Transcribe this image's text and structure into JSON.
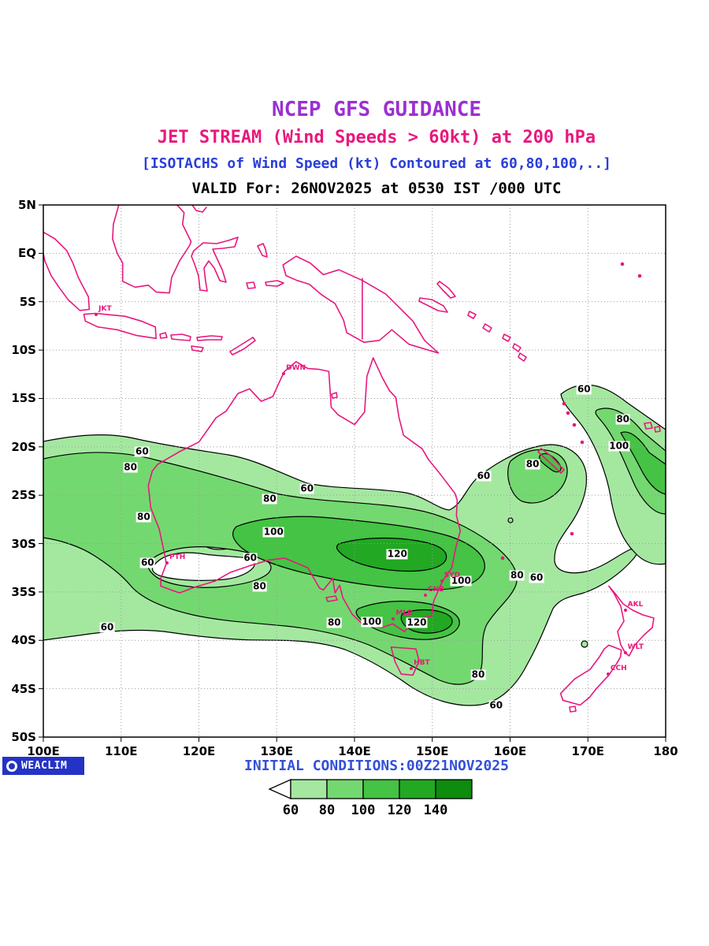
{
  "header": {
    "line1": "NCEP GFS GUIDANCE",
    "line2": "JET STREAM (Wind Speeds > 60kt) at 200 hPa",
    "line3": "[ISOTACHS of Wind Speed (kt) Contoured at 60,80,100,..]",
    "line4": "VALID For: 26NOV2025 at 0530 IST /000 UTC",
    "colors": {
      "line1": "#9b30d0",
      "line2": "#e8187d",
      "line3": "#2a3fd8",
      "line4": "#000000"
    }
  },
  "footer": {
    "initial_conditions": "INITIAL CONDITIONS:00Z21NOV2025",
    "initial_conditions_color": "#3350d8",
    "logo_text": "WEACLIM",
    "logo_bg": "#2433c6"
  },
  "axes": {
    "lat_ticks": [
      {
        "label": "5N",
        "lat": 5
      },
      {
        "label": "EQ",
        "lat": 0
      },
      {
        "label": "5S",
        "lat": -5
      },
      {
        "label": "10S",
        "lat": -10
      },
      {
        "label": "15S",
        "lat": -15
      },
      {
        "label": "20S",
        "lat": -20
      },
      {
        "label": "25S",
        "lat": -25
      },
      {
        "label": "30S",
        "lat": -30
      },
      {
        "label": "35S",
        "lat": -35
      },
      {
        "label": "40S",
        "lat": -40
      },
      {
        "label": "45S",
        "lat": -45
      },
      {
        "label": "50S",
        "lat": -50
      }
    ],
    "lon_ticks": [
      {
        "label": "100E",
        "lon": 100
      },
      {
        "label": "110E",
        "lon": 110
      },
      {
        "label": "120E",
        "lon": 120
      },
      {
        "label": "130E",
        "lon": 130
      },
      {
        "label": "140E",
        "lon": 140
      },
      {
        "label": "150E",
        "lon": 150
      },
      {
        "label": "160E",
        "lon": 160
      },
      {
        "label": "170E",
        "lon": 170
      },
      {
        "label": "180",
        "lon": 180
      }
    ]
  },
  "map": {
    "coast_color": "#e8187d",
    "grid_color": "#9a9a9a",
    "border_color": "#000000"
  },
  "chart_data": {
    "type": "heatmap",
    "subtype": "filled isotach contour map over geographic coastlines",
    "title": "NCEP GFS GUIDANCE",
    "subtitle": "JET STREAM (Wind Speeds > 60kt) at 200 hPa",
    "contour_note": "[ISOTACHS of Wind Speed (kt) Contoured at 60,80,100,..]",
    "valid_line": "VALID For: 26NOV2025 at 0530 IST /000 UTC",
    "initial_conditions": "INITIAL CONDITIONS:00Z21NOV2025",
    "variable": "wind speed",
    "unit": "kt",
    "pressure_level": "200 hPa",
    "model": "NCEP GFS",
    "lon_range_deg_e": [
      100,
      180
    ],
    "lat_range_deg": [
      -50,
      5
    ],
    "grid": true,
    "legend_position": "bottom",
    "contour_levels_kt": [
      60,
      80,
      100,
      120,
      140
    ],
    "fill_colors": [
      "#a4e8a0",
      "#74d870",
      "#44c344",
      "#22a822",
      "#0d8c0d"
    ],
    "below_min_color": "#ffffff",
    "features": [
      "broad subtropical jet band 100E-163E between about 20S and 47S with 100kt cores near 130E-150E around 29S-38S and 120kt maxima near 145E 31S and 148E 38S",
      "second diagonal jet band from about 169E 14S sloping southeast past 180E with 80 and 100kt cores near 174E 17S-20S"
    ],
    "contour_labels": [
      {
        "v": 60,
        "lon": 169.5,
        "lat": -14.1
      },
      {
        "v": 80,
        "lon": 174.5,
        "lat": -17.2
      },
      {
        "v": 100,
        "lon": 174.0,
        "lat": -19.9
      },
      {
        "v": 60,
        "lon": 112.7,
        "lat": -20.5
      },
      {
        "v": 80,
        "lon": 111.2,
        "lat": -22.1
      },
      {
        "v": 60,
        "lon": 133.9,
        "lat": -24.3
      },
      {
        "v": 80,
        "lon": 129.1,
        "lat": -25.4
      },
      {
        "v": 80,
        "lon": 112.9,
        "lat": -27.3
      },
      {
        "v": 100,
        "lon": 129.6,
        "lat": -28.8
      },
      {
        "v": 60,
        "lon": 156.6,
        "lat": -23.0
      },
      {
        "v": 80,
        "lon": 162.9,
        "lat": -21.8
      },
      {
        "v": 120,
        "lon": 145.5,
        "lat": -31.1
      },
      {
        "v": 60,
        "lon": 113.4,
        "lat": -32.0
      },
      {
        "v": 60,
        "lon": 126.6,
        "lat": -31.5
      },
      {
        "v": 100,
        "lon": 153.7,
        "lat": -33.9
      },
      {
        "v": 80,
        "lon": 160.9,
        "lat": -33.3
      },
      {
        "v": 60,
        "lon": 163.4,
        "lat": -33.5
      },
      {
        "v": 80,
        "lon": 127.8,
        "lat": -34.4
      },
      {
        "v": 80,
        "lon": 137.4,
        "lat": -38.2
      },
      {
        "v": 100,
        "lon": 142.2,
        "lat": -38.1
      },
      {
        "v": 120,
        "lon": 148.0,
        "lat": -38.2
      },
      {
        "v": 60,
        "lon": 108.2,
        "lat": -38.7
      },
      {
        "v": 80,
        "lon": 155.9,
        "lat": -43.6
      },
      {
        "v": 60,
        "lon": 158.2,
        "lat": -46.7
      }
    ],
    "city_markers": [
      {
        "code": "JKT",
        "lon": 106.8,
        "lat": -6.3
      },
      {
        "code": "DWN",
        "lon": 130.9,
        "lat": -12.4
      },
      {
        "code": "PTH",
        "lon": 115.9,
        "lat": -32.0
      },
      {
        "code": "SYD",
        "lon": 151.2,
        "lat": -33.9
      },
      {
        "code": "CNB",
        "lon": 149.1,
        "lat": -35.3
      },
      {
        "code": "MLB",
        "lon": 145.0,
        "lat": -37.8
      },
      {
        "code": "HBT",
        "lon": 147.3,
        "lat": -42.9
      },
      {
        "code": "AKL",
        "lon": 174.8,
        "lat": -36.9
      },
      {
        "code": "WLT",
        "lon": 174.8,
        "lat": -41.3
      },
      {
        "code": "CCH",
        "lon": 172.6,
        "lat": -43.5
      }
    ]
  }
}
